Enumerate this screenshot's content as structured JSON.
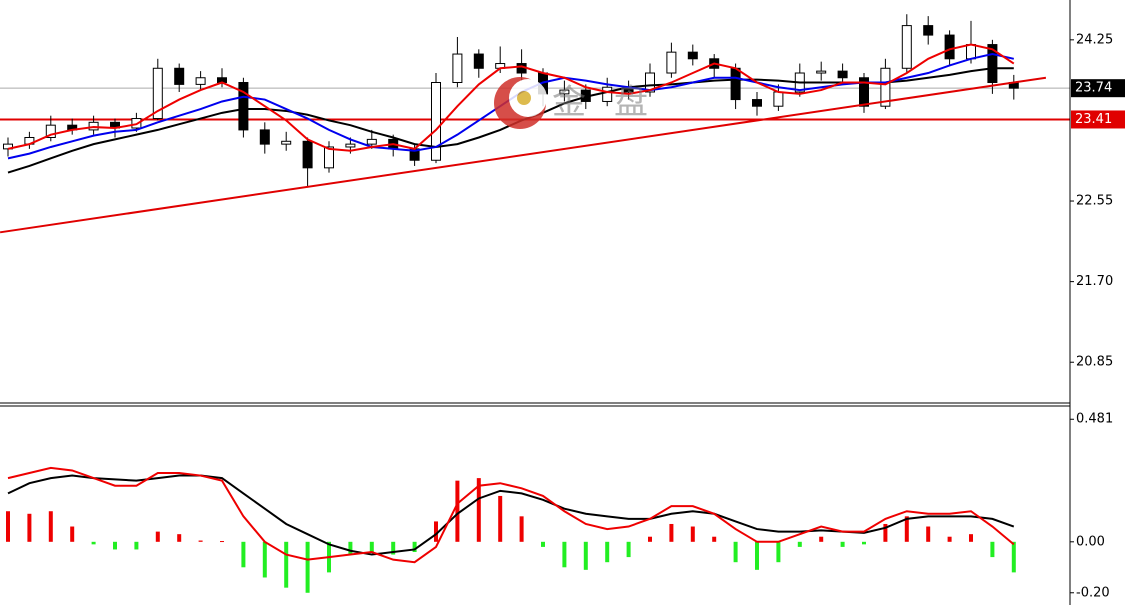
{
  "chart_data": [
    {
      "type": "candlestick",
      "ylim": [
        20.42,
        24.67
      ],
      "yticks": [
        20.85,
        {
          "value": 21.7,
          "label": "21.70"
        },
        22.55,
        24.25
      ],
      "current_price": 23.74,
      "hline": 23.41,
      "hline_color": "#e00000",
      "trendline": {
        "x": [
          -0.37,
          48.5
        ],
        "y": [
          22.22,
          23.85
        ],
        "color": "#e00000"
      },
      "watermark": "金盘",
      "candles": [
        [
          23.1,
          23.22,
          23.02,
          23.15
        ],
        [
          23.15,
          23.28,
          23.1,
          23.22
        ],
        [
          23.22,
          23.45,
          23.18,
          23.35
        ],
        [
          23.35,
          23.42,
          23.25,
          23.3
        ],
        [
          23.3,
          23.45,
          23.25,
          23.38
        ],
        [
          23.38,
          23.42,
          23.22,
          23.32
        ],
        [
          23.32,
          23.48,
          23.28,
          23.42
        ],
        [
          23.42,
          24.05,
          23.4,
          23.95
        ],
        [
          23.95,
          24.0,
          23.7,
          23.78
        ],
        [
          23.78,
          23.92,
          23.72,
          23.85
        ],
        [
          23.85,
          23.95,
          23.75,
          23.8
        ],
        [
          23.8,
          23.85,
          23.22,
          23.3
        ],
        [
          23.3,
          23.38,
          23.05,
          23.15
        ],
        [
          23.15,
          23.28,
          23.08,
          23.18
        ],
        [
          23.18,
          23.22,
          22.7,
          22.9
        ],
        [
          22.9,
          23.18,
          22.85,
          23.12
        ],
        [
          23.12,
          23.22,
          23.05,
          23.15
        ],
        [
          23.15,
          23.3,
          23.1,
          23.2
        ],
        [
          23.2,
          23.25,
          23.02,
          23.1
        ],
        [
          23.1,
          23.15,
          22.92,
          22.98
        ],
        [
          22.98,
          23.9,
          22.95,
          23.8
        ],
        [
          23.8,
          24.28,
          23.75,
          24.1
        ],
        [
          24.1,
          24.15,
          23.85,
          23.95
        ],
        [
          23.95,
          24.18,
          23.9,
          24.0
        ],
        [
          24.0,
          24.15,
          23.82,
          23.9
        ],
        [
          23.9,
          23.95,
          23.55,
          23.68
        ],
        [
          23.68,
          23.82,
          23.6,
          23.72
        ],
        [
          23.72,
          23.78,
          23.52,
          23.6
        ],
        [
          23.6,
          23.85,
          23.55,
          23.75
        ],
        [
          23.75,
          23.82,
          23.62,
          23.7
        ],
        [
          23.7,
          24.0,
          23.65,
          23.9
        ],
        [
          23.9,
          24.22,
          23.85,
          24.12
        ],
        [
          24.12,
          24.2,
          23.98,
          24.05
        ],
        [
          24.05,
          24.1,
          23.85,
          23.95
        ],
        [
          23.95,
          24.0,
          23.52,
          23.62
        ],
        [
          23.62,
          23.7,
          23.45,
          23.55
        ],
        [
          23.55,
          23.78,
          23.5,
          23.7
        ],
        [
          23.7,
          24.0,
          23.65,
          23.9
        ],
        [
          23.9,
          24.02,
          23.82,
          23.92
        ],
        [
          23.92,
          24.0,
          23.78,
          23.85
        ],
        [
          23.85,
          23.9,
          23.48,
          23.55
        ],
        [
          23.55,
          24.05,
          23.52,
          23.95
        ],
        [
          23.95,
          24.52,
          23.9,
          24.4
        ],
        [
          24.4,
          24.5,
          24.2,
          24.3
        ],
        [
          24.3,
          24.35,
          23.98,
          24.05
        ],
        [
          24.05,
          24.45,
          24.0,
          24.2
        ],
        [
          24.2,
          24.25,
          23.68,
          23.8
        ],
        [
          23.8,
          23.88,
          23.62,
          23.74
        ]
      ],
      "series": [
        {
          "color": "#000000",
          "values": [
            22.85,
            22.92,
            23.0,
            23.08,
            23.15,
            23.2,
            23.25,
            23.3,
            23.36,
            23.42,
            23.48,
            23.52,
            23.52,
            23.5,
            23.46,
            23.4,
            23.35,
            23.28,
            23.22,
            23.15,
            23.12,
            23.15,
            23.22,
            23.3,
            23.4,
            23.48,
            23.58,
            23.65,
            23.7,
            23.75,
            23.77,
            23.78,
            23.8,
            23.82,
            23.83,
            23.83,
            23.82,
            23.8,
            23.8,
            23.8,
            23.8,
            23.8,
            23.82,
            23.85,
            23.88,
            23.92,
            23.95,
            23.95
          ]
        },
        {
          "color": "#0000ee",
          "values": [
            23.0,
            23.05,
            23.12,
            23.18,
            23.24,
            23.28,
            23.3,
            23.38,
            23.45,
            23.52,
            23.6,
            23.65,
            23.62,
            23.52,
            23.42,
            23.3,
            23.2,
            23.12,
            23.1,
            23.08,
            23.12,
            23.25,
            23.4,
            23.55,
            23.7,
            23.8,
            23.85,
            23.82,
            23.78,
            23.75,
            23.72,
            23.75,
            23.8,
            23.85,
            23.85,
            23.8,
            23.75,
            23.72,
            23.75,
            23.78,
            23.8,
            23.8,
            23.85,
            23.9,
            23.98,
            24.05,
            24.1,
            24.05
          ]
        },
        {
          "color": "#ee0000",
          "values": [
            23.1,
            23.15,
            23.25,
            23.3,
            23.33,
            23.32,
            23.36,
            23.5,
            23.62,
            23.72,
            23.8,
            23.7,
            23.55,
            23.4,
            23.2,
            23.1,
            23.08,
            23.12,
            23.15,
            23.1,
            23.3,
            23.55,
            23.78,
            23.95,
            23.97,
            23.9,
            23.85,
            23.75,
            23.7,
            23.68,
            23.72,
            23.8,
            23.9,
            24.0,
            23.95,
            23.8,
            23.7,
            23.68,
            23.72,
            23.8,
            23.8,
            23.78,
            23.9,
            24.05,
            24.15,
            24.2,
            24.15,
            24.0
          ]
        }
      ]
    },
    {
      "type": "macd",
      "ylim": [
        -0.248,
        0.533
      ],
      "yticks": [
        {
          "value": -0.2,
          "label": "-0.20"
        },
        {
          "value": 0,
          "label": "0.00"
        },
        0.481
      ],
      "up_color": "#ee0000",
      "down_color": "#22ee22",
      "histogram": [
        0.12,
        0.11,
        0.12,
        0.06,
        -0.01,
        -0.03,
        -0.03,
        0.04,
        0.03,
        0.005,
        0.003,
        -0.1,
        -0.14,
        -0.18,
        -0.2,
        -0.12,
        -0.05,
        -0.04,
        -0.05,
        -0.04,
        0.08,
        0.24,
        0.25,
        0.18,
        0.1,
        -0.02,
        -0.1,
        -0.11,
        -0.08,
        -0.06,
        0.02,
        0.07,
        0.06,
        0.02,
        -0.08,
        -0.11,
        -0.08,
        -0.02,
        0.02,
        -0.02,
        -0.01,
        0.07,
        0.1,
        0.06,
        0.02,
        0.03,
        -0.06,
        -0.12
      ],
      "series": [
        {
          "color": "#000000",
          "values": [
            0.19,
            0.23,
            0.25,
            0.26,
            0.25,
            0.245,
            0.24,
            0.25,
            0.26,
            0.26,
            0.25,
            0.19,
            0.13,
            0.07,
            0.03,
            -0.01,
            -0.035,
            -0.05,
            -0.04,
            -0.03,
            0.03,
            0.11,
            0.17,
            0.2,
            0.19,
            0.165,
            0.13,
            0.11,
            0.1,
            0.09,
            0.09,
            0.11,
            0.12,
            0.11,
            0.08,
            0.05,
            0.04,
            0.04,
            0.045,
            0.04,
            0.035,
            0.055,
            0.09,
            0.1,
            0.1,
            0.1,
            0.09,
            0.06
          ]
        },
        {
          "color": "#ee0000",
          "values": [
            0.25,
            0.27,
            0.29,
            0.28,
            0.25,
            0.22,
            0.22,
            0.27,
            0.27,
            0.26,
            0.24,
            0.1,
            0.0,
            -0.05,
            -0.07,
            -0.06,
            -0.05,
            -0.04,
            -0.07,
            -0.08,
            -0.02,
            0.15,
            0.22,
            0.23,
            0.21,
            0.18,
            0.12,
            0.07,
            0.05,
            0.06,
            0.09,
            0.14,
            0.14,
            0.11,
            0.05,
            0.0,
            0.0,
            0.03,
            0.06,
            0.04,
            0.04,
            0.09,
            0.12,
            0.11,
            0.11,
            0.12,
            0.06,
            -0.01
          ]
        }
      ]
    }
  ]
}
